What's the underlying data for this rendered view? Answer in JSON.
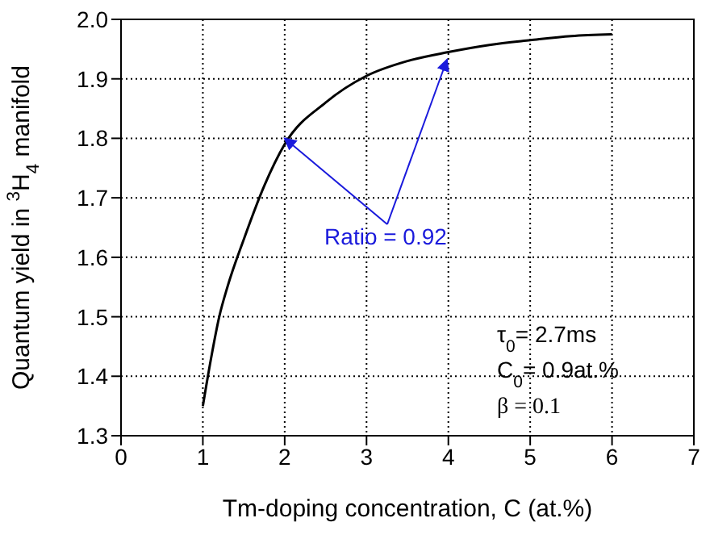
{
  "chart_data": {
    "type": "line",
    "xlabel": "Tm-doping concentration, C (at.%)",
    "ylabel": "Quantum yield in $^{3}$H$_{4}$ manifold",
    "x": [
      1,
      1.1,
      1.2,
      1.3,
      1.5,
      1.75,
      2,
      2.5,
      3,
      3.5,
      4,
      4.5,
      5,
      5.5,
      6
    ],
    "series": [
      {
        "color": "#000000",
        "values": [
          1.35,
          1.43,
          1.5,
          1.55,
          1.63,
          1.72,
          1.79,
          1.86,
          1.905,
          1.93,
          1.945,
          1.957,
          1.965,
          1.972,
          1.975
        ]
      }
    ],
    "xlim": [
      0,
      7
    ],
    "xticks": [
      0,
      1,
      2,
      3,
      4,
      5,
      6,
      7
    ],
    "ylim": [
      1.3,
      2.0
    ],
    "yticks": [
      1.3,
      1.4,
      1.5,
      1.6,
      1.7,
      1.8,
      1.9,
      {
        "value": 2.0,
        "label": "2.0"
      }
    ],
    "grid": true,
    "marker": "none",
    "line_style": "solid",
    "annotations": [
      {
        "text": "Ratio = 0.92",
        "x": 2,
        "y": 1.8
      },
      "τ$_{0}$= 2.7ms",
      "C$_{0}$= 0.9at.%",
      "β = 0.1"
    ]
  }
}
